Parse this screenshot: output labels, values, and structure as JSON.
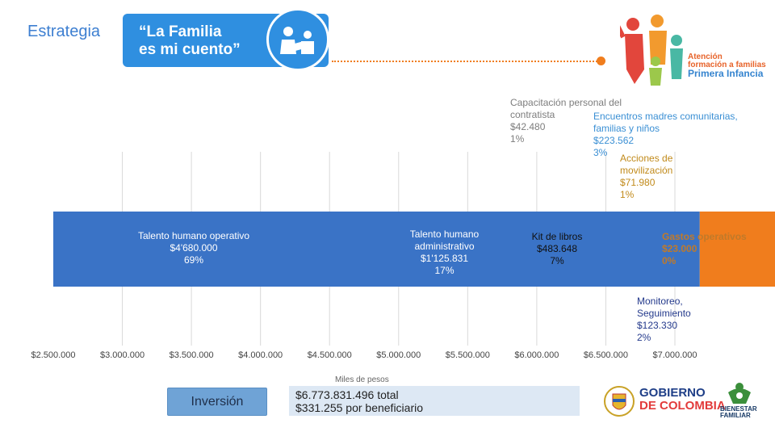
{
  "header": {
    "strategy_label": "Estrategia",
    "banner_line1": "“La Familia",
    "banner_line2": "es mi cuento”",
    "program_line1": "Atención",
    "program_line2": "formación a familias",
    "program_line3": "Primera Infancia"
  },
  "colors": {
    "talento_operativo": "#3a73c6",
    "talento_administrativo": "#f07d1d",
    "capacitacion": "#8a8a8a",
    "kit_libros": "#f6d713",
    "encuentros": "#4fa9e3",
    "movilizacion": "#7ec142",
    "monitoreo": "#243a8c",
    "gastos": "#a0794f"
  },
  "chart_data": {
    "type": "bar",
    "orientation": "horizontal-stacked",
    "xlabel": "Miles de pesos",
    "xlim": [
      2500000,
      7000000
    ],
    "base": 2500000,
    "ticks": [
      {
        "value": 2500000,
        "label": "$2.500.000"
      },
      {
        "value": 3000000,
        "label": "$3.000.000"
      },
      {
        "value": 3500000,
        "label": "$3.500.000"
      },
      {
        "value": 4000000,
        "label": "$4.000.000"
      },
      {
        "value": 4500000,
        "label": "$4.500.000"
      },
      {
        "value": 5000000,
        "label": "$5.000.000"
      },
      {
        "value": 5500000,
        "label": "$5.500.000"
      },
      {
        "value": 6000000,
        "label": "$6.000.000"
      },
      {
        "value": 6500000,
        "label": "$6.500.000"
      },
      {
        "value": 7000000,
        "label": "$7.000.000"
      }
    ],
    "series": [
      {
        "key": "talento_operativo",
        "name": "Talento humano operativo",
        "value": 4680000,
        "value_label": "$4'680.000",
        "pct": "69%"
      },
      {
        "key": "talento_administrativo",
        "name": "Talento humano administrativo",
        "value": 1125831,
        "value_label": "$1'125.831",
        "pct": "17%"
      },
      {
        "key": "capacitacion",
        "name": "Capacitación personal del contratista",
        "value": 42480,
        "value_label": "$42.480",
        "pct": "1%"
      },
      {
        "key": "kit_libros",
        "name": "Kit de libros",
        "value": 483648,
        "value_label": "$483.648",
        "pct": "7%"
      },
      {
        "key": "encuentros",
        "name": "Encuentros madres comunitarias, familias y niños",
        "value": 223562,
        "value_label": "$223.562",
        "pct": "3%"
      },
      {
        "key": "movilizacion",
        "name": "Acciones de movilización",
        "value": 71980,
        "value_label": "$71.980",
        "pct": "1%"
      },
      {
        "key": "monitoreo",
        "name": "Monitoreo, Seguimiento",
        "value": 123330,
        "value_label": "$123.330",
        "pct": "2%"
      },
      {
        "key": "gastos",
        "name": "Gastos operativos",
        "value": 23000,
        "value_label": "$23.000",
        "pct": "0%"
      }
    ]
  },
  "footer": {
    "unit_label": "Miles de pesos",
    "investment_button": "Inversión",
    "total_line": "$6.773.831.496 total",
    "per_beneficiary_line": "$331.255 por beneficiario",
    "gov_line1": "GOBIERNO",
    "gov_line2": "DE COLOMBIA",
    "bienestar_line1": "BIENESTAR",
    "bienestar_line2": "FAMILIAR"
  }
}
